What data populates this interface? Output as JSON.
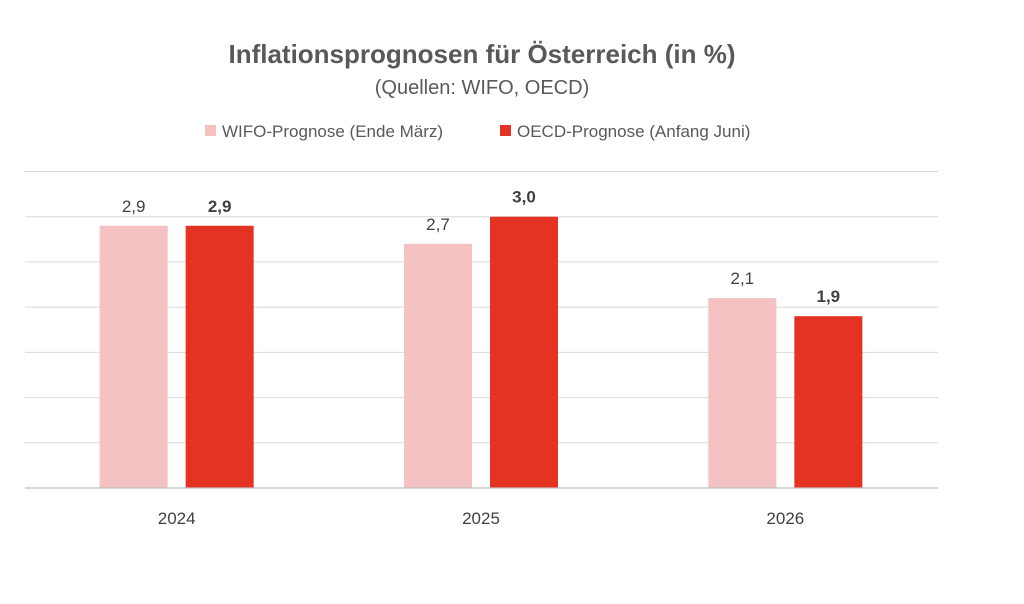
{
  "chart_data": {
    "type": "bar",
    "title": "Inflationsprognosen für Österreich (in %)",
    "subtitle": "(Quellen: WIFO, OECD)",
    "categories": [
      "2024",
      "2025",
      "2026"
    ],
    "series": [
      {
        "name": "WIFO-Prognose (Ende März)",
        "values": [
          2.9,
          2.7,
          2.1
        ],
        "labels": [
          "2,9",
          "2,7",
          "2,1"
        ],
        "color": "#F4C2C2",
        "label_bold": false
      },
      {
        "name": "OECD-Prognose (Anfang Juni)",
        "values": [
          2.9,
          3.0,
          1.9
        ],
        "labels": [
          "2,9",
          "3,0",
          "1,9"
        ],
        "color": "#E53323",
        "label_bold": true
      }
    ],
    "ylim": [
      0,
      3.5
    ],
    "gridlines": true,
    "legend_position": "top"
  }
}
